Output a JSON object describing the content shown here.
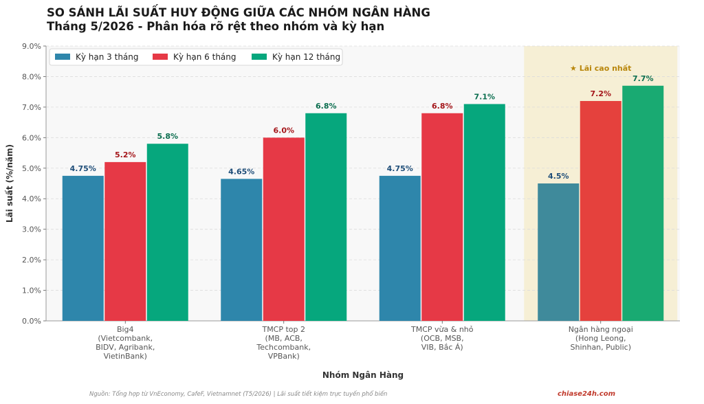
{
  "chart_data": {
    "type": "bar",
    "title": "SO SÁNH LÃI SUẤT HUY ĐỘNG GIỮA CÁC NHÓM NGÂN HÀNG",
    "subtitle": "Tháng 5/2026 - Phân hóa rõ rệt theo nhóm và kỳ hạn",
    "xlabel": "Nhóm Ngân Hàng",
    "ylabel": "Lãi suất (%/năm)",
    "ylim": [
      0,
      9
    ],
    "yticks": [
      "0.0%",
      "1.0%",
      "2.0%",
      "3.0%",
      "4.0%",
      "5.0%",
      "6.0%",
      "7.0%",
      "8.0%",
      "9.0%"
    ],
    "grid": true,
    "legend_position": "top-left",
    "categories": [
      [
        "Big4",
        "(Vietcombank,",
        "BIDV, Agribank,",
        "VietinBank)"
      ],
      [
        "TMCP top 2",
        "(MB, ACB,",
        "Techcombank,",
        "VPBank)"
      ],
      [
        "TMCP vừa & nhỏ",
        "(OCB, MSB,",
        "VIB, Bắc Á)"
      ],
      [
        "Ngân hàng ngoại",
        "(Hong Leong,",
        "Shinhan, Public)"
      ]
    ],
    "series": [
      {
        "name": "Kỳ hạn 3 tháng",
        "color": "#2e86ab",
        "values": [
          4.75,
          4.65,
          4.75,
          4.5
        ],
        "labels": [
          "4.75%",
          "4.65%",
          "4.75%",
          "4.5%"
        ],
        "label_color": "#1f4e79"
      },
      {
        "name": "Kỳ hạn 6 tháng",
        "color": "#e63946",
        "values": [
          5.2,
          6.0,
          6.8,
          7.2
        ],
        "labels": [
          "5.2%",
          "6.0%",
          "6.8%",
          "7.2%"
        ],
        "label_color": "#a4161a"
      },
      {
        "name": "Kỳ hạn 12 tháng",
        "color": "#06a77d",
        "values": [
          5.8,
          6.8,
          7.1,
          7.7
        ],
        "labels": [
          "5.8%",
          "6.8%",
          "7.1%",
          "7.7%"
        ],
        "label_color": "#0b6e4f"
      }
    ],
    "highlight": {
      "category_index": 3,
      "label": "★ Lãi cao nhất",
      "fill": "#f5eccc",
      "text_color": "#b8860b"
    }
  },
  "footer": {
    "source": "Nguồn: Tổng hợp từ VnEconomy, CafeF, Vietnamnet (T5/2026) | Lãi suất tiết kiệm trực tuyến phổ biến",
    "brand": "chiase24h.com"
  }
}
